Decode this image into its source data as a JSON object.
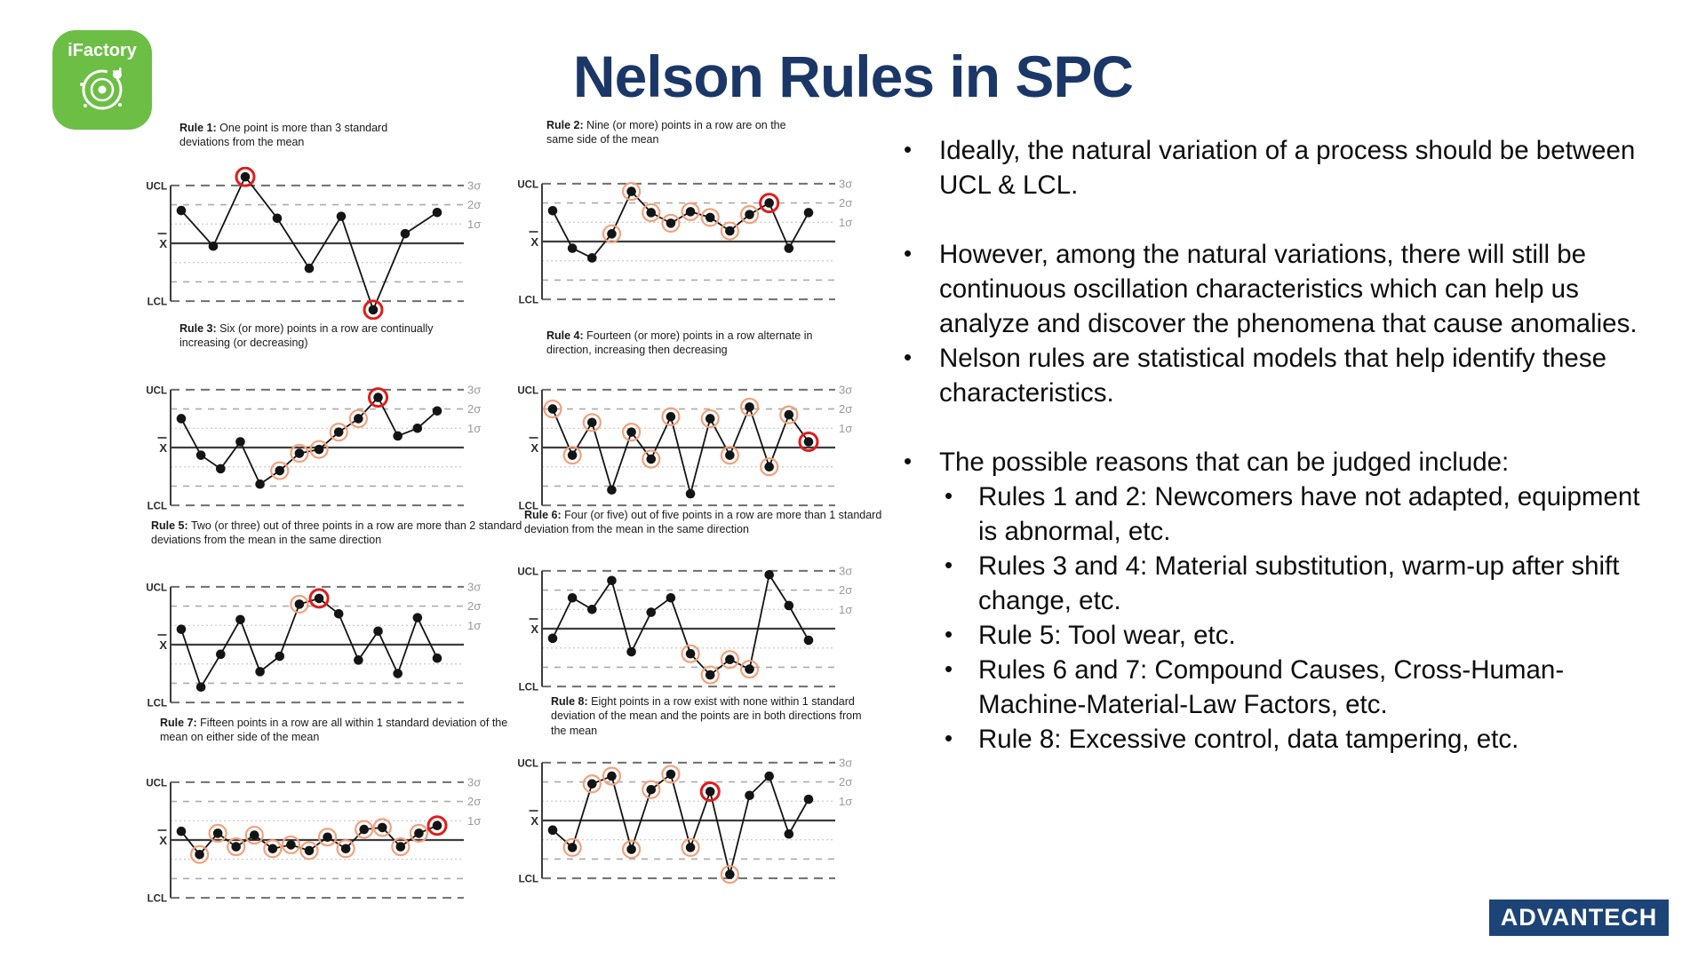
{
  "slide": {
    "title": "Nelson Rules in SPC",
    "logo_text": "iFactory",
    "footer_logo_text": "ADVANTECH"
  },
  "colors": {
    "title_navy": "#1b3767",
    "logo_green": "#6cbe45",
    "advantech_navy": "#1d4477",
    "highlight_orange": "#f1a17c",
    "highlight_red": "#e11c1c",
    "point_black": "#141414"
  },
  "chart_common": {
    "ucl_label": "UCL",
    "mean_label": "X̄",
    "lcl_label": "LCL",
    "sigma_labels": [
      "3σ",
      "2σ",
      "1σ"
    ]
  },
  "chart_data": [
    {
      "type": "line",
      "rule": "Rule 1:",
      "description": "One point is more than 3 standard deviations from the mean",
      "ylim": [
        -3.6,
        3.6
      ],
      "points": [
        1.7,
        -0.15,
        3.45,
        1.3,
        -1.3,
        1.4,
        -3.45,
        0.5,
        1.6
      ],
      "orange": [],
      "red": [
        2,
        6
      ]
    },
    {
      "type": "line",
      "rule": "Rule 2:",
      "description": "Nine (or more) points in a row are on the same side of the mean",
      "ylim": [
        -3.6,
        3.6
      ],
      "points": [
        1.6,
        -0.35,
        -0.85,
        0.4,
        2.6,
        1.5,
        0.95,
        1.55,
        1.25,
        0.55,
        1.4,
        2.0,
        -0.35,
        1.5
      ],
      "orange": [
        3,
        4,
        5,
        6,
        7,
        8,
        9,
        10
      ],
      "red": [
        11
      ]
    },
    {
      "type": "line",
      "rule": "Rule 3:",
      "description": "Six (or more) points in a row are continually increasing (or decreasing)",
      "ylim": [
        -3.6,
        3.6
      ],
      "points": [
        1.5,
        -0.4,
        -1.1,
        0.3,
        -1.9,
        -1.2,
        -0.3,
        -0.1,
        0.8,
        1.5,
        2.6,
        0.6,
        1.0,
        1.9
      ],
      "orange": [
        5,
        6,
        7,
        8,
        9
      ],
      "red": [
        10
      ]
    },
    {
      "type": "line",
      "rule": "Rule 4:",
      "description": "Fourteen (or more) points in a row alternate in direction, increasing then decreasing",
      "ylim": [
        -3.6,
        3.6
      ],
      "points": [
        2.0,
        -0.4,
        1.3,
        -2.2,
        0.8,
        -0.6,
        1.6,
        -2.4,
        1.5,
        -0.4,
        2.1,
        -1.0,
        1.7,
        0.3
      ],
      "orange": [
        0,
        1,
        2,
        4,
        5,
        6,
        8,
        9,
        10,
        11,
        12
      ],
      "red": [
        13
      ]
    },
    {
      "type": "line",
      "rule": "Rule 5:",
      "description": "Two (or three) out of three points in a row are more than 2 standard deviations from the mean in the same direction",
      "ylim": [
        -3.6,
        3.6
      ],
      "points": [
        0.8,
        -2.2,
        -0.5,
        1.3,
        -1.4,
        -0.6,
        2.1,
        2.4,
        1.6,
        -0.8,
        0.7,
        -1.5,
        1.4,
        -0.7
      ],
      "orange": [
        6
      ],
      "red": [
        7
      ]
    },
    {
      "type": "line",
      "rule": "Rule 6:",
      "description": "Four (or five) out of five points in a row are more than 1 standard deviation from the mean in the same direction",
      "ylim": [
        -3.6,
        3.6
      ],
      "points": [
        -0.5,
        1.6,
        1.0,
        2.5,
        -1.2,
        0.85,
        1.6,
        -1.3,
        -2.4,
        -1.6,
        -2.1,
        2.8,
        1.2,
        -0.6
      ],
      "orange": [
        7,
        8,
        9,
        10
      ],
      "red": []
    },
    {
      "type": "line",
      "rule": "Rule 7:",
      "description": "Fifteen points in a row are all within 1 standard deviation of the mean on either side of the mean",
      "ylim": [
        -3.6,
        3.6
      ],
      "points": [
        0.45,
        -0.75,
        0.35,
        -0.35,
        0.25,
        -0.45,
        -0.25,
        -0.55,
        0.15,
        -0.45,
        0.55,
        0.65,
        -0.35,
        0.35,
        0.75
      ],
      "orange": [
        1,
        2,
        3,
        4,
        5,
        6,
        7,
        8,
        9,
        10,
        11,
        12,
        13
      ],
      "red": [
        14
      ]
    },
    {
      "type": "line",
      "rule": "Rule 8:",
      "description": "Eight points in a row exist with none within 1 standard deviation of the mean and the points are in both directions from the mean",
      "ylim": [
        -3.6,
        3.6
      ],
      "points": [
        -0.5,
        -1.4,
        1.9,
        2.3,
        -1.5,
        1.6,
        2.4,
        -1.4,
        1.5,
        -2.8,
        1.3,
        2.3,
        -0.7,
        1.1
      ],
      "orange": [
        1,
        2,
        3,
        4,
        5,
        6,
        7,
        9
      ],
      "red": [
        8
      ]
    }
  ],
  "main_text": {
    "items": [
      {
        "level": 1,
        "gap_before": false,
        "text": "Ideally, the natural variation of a process should be between UCL & LCL."
      },
      {
        "level": 1,
        "gap_before": true,
        "text": "However, among the natural variations, there will still be continuous oscillation characteristics which can help us analyze and discover the phenomena that cause anomalies."
      },
      {
        "level": 1,
        "gap_before": false,
        "text": "Nelson rules are statistical models that help identify these characteristics."
      },
      {
        "level": 1,
        "gap_before": true,
        "text": "The possible reasons that can be judged include:"
      },
      {
        "level": 2,
        "gap_before": false,
        "text": "Rules 1 and 2: Newcomers have not adapted, equipment is abnormal, etc."
      },
      {
        "level": 2,
        "gap_before": false,
        "text": "Rules 3 and 4: Material substitution, warm-up after shift change, etc."
      },
      {
        "level": 2,
        "gap_before": false,
        "text": "Rule 5: Tool wear, etc."
      },
      {
        "level": 2,
        "gap_before": false,
        "text": "Rules 6 and 7: Compound Causes, Cross-Human-Machine-Material-Law Factors, etc."
      },
      {
        "level": 2,
        "gap_before": false,
        "text": "Rule 8: Excessive control, data tampering, etc."
      }
    ]
  }
}
